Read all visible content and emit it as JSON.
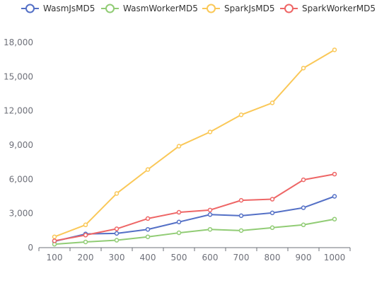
{
  "chart_data": {
    "type": "line",
    "title": "",
    "xlabel": "",
    "ylabel": "",
    "categories": [
      "100",
      "200",
      "300",
      "400",
      "500",
      "600",
      "700",
      "800",
      "900",
      "1000"
    ],
    "y_ticks": [
      "0",
      "3,000",
      "6,000",
      "9,000",
      "12,000",
      "15,000",
      "18,000"
    ],
    "ylim": [
      0,
      18000
    ],
    "grid": false,
    "legend_position": "top-left",
    "series": [
      {
        "name": "WasmJsMD5",
        "color": "#5470c6",
        "values": [
          550,
          1200,
          1250,
          1600,
          2250,
          2900,
          2800,
          3050,
          3500,
          4500
        ]
      },
      {
        "name": "WasmWorkerMD5",
        "color": "#91cc75",
        "values": [
          300,
          500,
          650,
          950,
          1300,
          1600,
          1500,
          1750,
          2000,
          2500
        ]
      },
      {
        "name": "SparkJsMD5",
        "color": "#fac858",
        "values": [
          950,
          2000,
          4750,
          6850,
          8900,
          10150,
          11650,
          12700,
          15750,
          17350
        ]
      },
      {
        "name": "SparkWorkerMD5",
        "color": "#ee6666",
        "values": [
          600,
          1100,
          1650,
          2550,
          3100,
          3300,
          4150,
          4250,
          5950,
          6450
        ]
      }
    ]
  }
}
